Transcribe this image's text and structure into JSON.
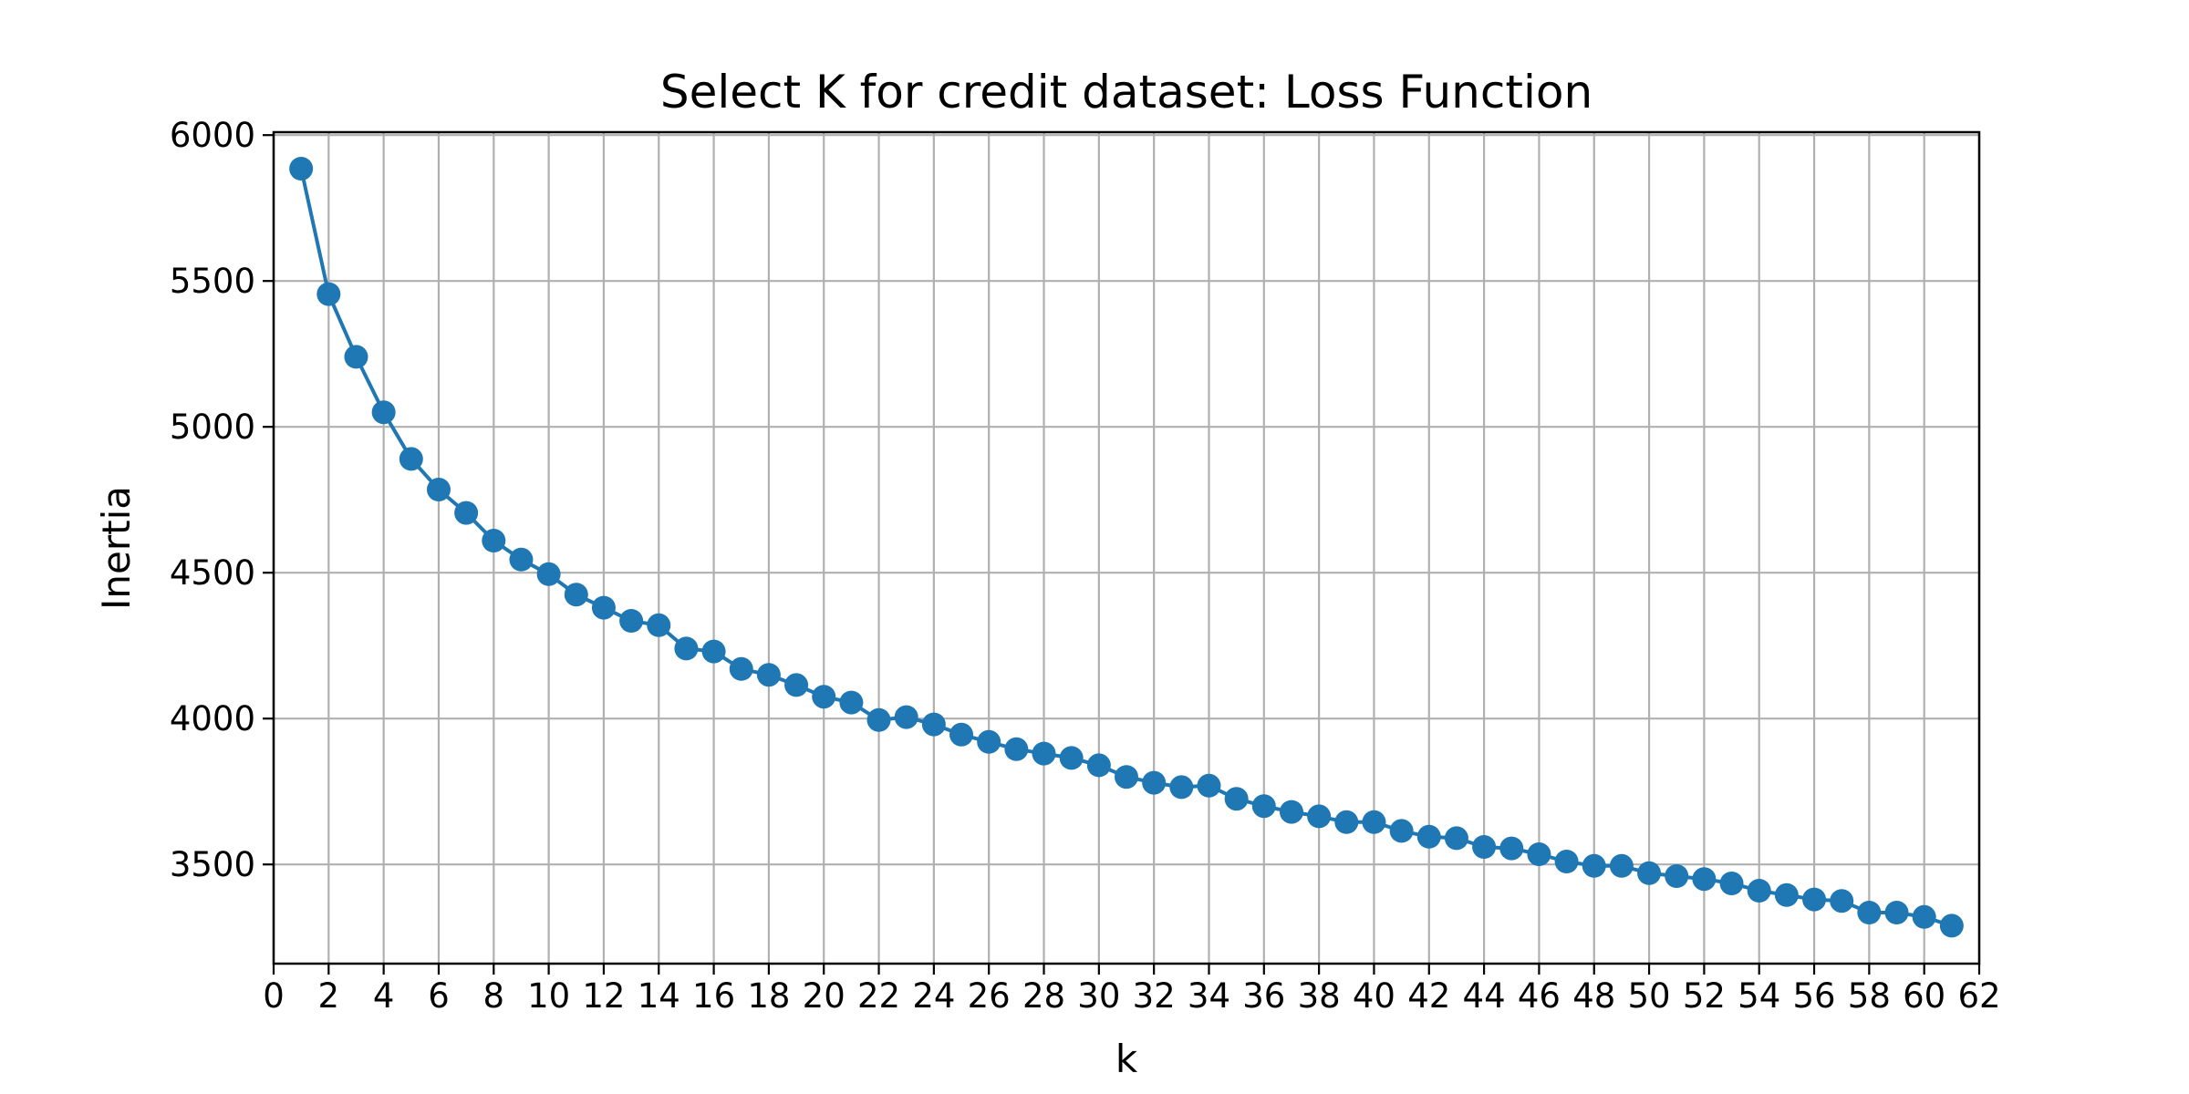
{
  "chart_data": {
    "type": "line",
    "title": "Select K for credit dataset: Loss Function",
    "xlabel": "k",
    "ylabel": "Inertia",
    "xlim": [
      0,
      62
    ],
    "ylim": [
      3160,
      6010
    ],
    "xticks": [
      0,
      2,
      4,
      6,
      8,
      10,
      12,
      14,
      16,
      18,
      20,
      22,
      24,
      26,
      28,
      30,
      32,
      34,
      36,
      38,
      40,
      42,
      44,
      46,
      48,
      50,
      52,
      54,
      56,
      58,
      60,
      62
    ],
    "yticks": [
      3500,
      4000,
      4500,
      5000,
      5500,
      6000
    ],
    "grid": true,
    "series": [
      {
        "color": "#1f77b4",
        "marker": "circle",
        "x": [
          1,
          2,
          3,
          4,
          5,
          6,
          7,
          8,
          9,
          10,
          11,
          12,
          13,
          14,
          15,
          16,
          17,
          18,
          19,
          20,
          21,
          22,
          23,
          24,
          25,
          26,
          27,
          28,
          29,
          30,
          31,
          32,
          33,
          34,
          35,
          36,
          37,
          38,
          39,
          40,
          41,
          42,
          43,
          44,
          45,
          46,
          47,
          48,
          49,
          50,
          51,
          52,
          53,
          54,
          55,
          56,
          57,
          58,
          59,
          60,
          61
        ],
        "y": [
          5885,
          5455,
          5240,
          5050,
          4890,
          4785,
          4705,
          4610,
          4545,
          4495,
          4425,
          4380,
          4335,
          4320,
          4240,
          4230,
          4170,
          4150,
          4115,
          4075,
          4055,
          3995,
          4005,
          3980,
          3945,
          3920,
          3895,
          3880,
          3865,
          3840,
          3800,
          3780,
          3765,
          3770,
          3725,
          3700,
          3680,
          3665,
          3645,
          3645,
          3615,
          3595,
          3590,
          3560,
          3555,
          3535,
          3510,
          3495,
          3495,
          3470,
          3460,
          3450,
          3435,
          3410,
          3395,
          3380,
          3375,
          3335,
          3335,
          3320,
          3290
        ]
      }
    ]
  }
}
